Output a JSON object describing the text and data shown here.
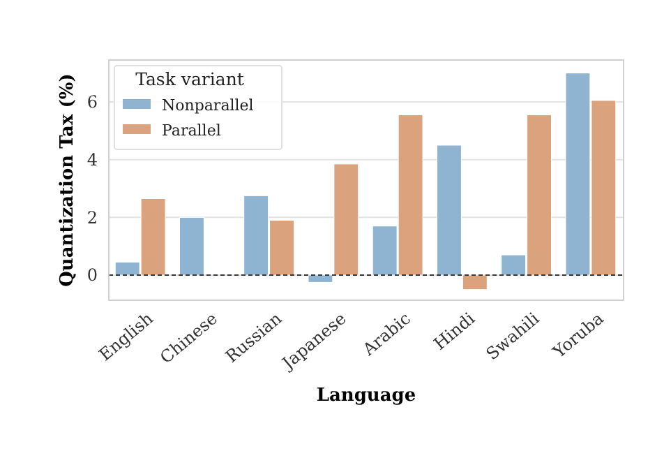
{
  "chart_data": {
    "type": "bar",
    "xlabel": "Language",
    "ylabel": "Quantization Tax (%)",
    "legend_title": "Task variant",
    "categories": [
      "English",
      "Chinese",
      "Russian",
      "Japanese",
      "Arabic",
      "Hindi",
      "Swahili",
      "Yoruba"
    ],
    "series": [
      {
        "name": "Nonparallel",
        "color": "#8fb4d2",
        "values": [
          0.45,
          2.0,
          2.75,
          -0.25,
          1.7,
          4.5,
          0.7,
          7.0
        ]
      },
      {
        "name": "Parallel",
        "color": "#dba27e",
        "values": [
          2.65,
          null,
          1.9,
          3.85,
          5.55,
          -0.5,
          5.55,
          6.05
        ]
      }
    ],
    "ylim": [
      -0.87,
      7.45
    ],
    "yticks": [
      0,
      2,
      4,
      6
    ],
    "grid": "y",
    "legend": "top left",
    "ref_lines": [
      {
        "axis": "y",
        "value": 0,
        "color": "#000000",
        "line_style": "dashed"
      }
    ]
  }
}
